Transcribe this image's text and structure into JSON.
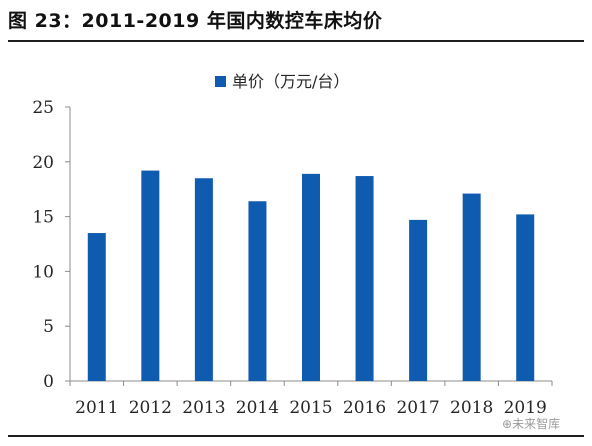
{
  "figure": {
    "title": "图 23：2011-2019 年国内数控车床均价"
  },
  "watermark": {
    "text": "未来智库"
  },
  "chart_data": {
    "type": "bar",
    "categories": [
      "2011",
      "2012",
      "2013",
      "2014",
      "2015",
      "2016",
      "2017",
      "2018",
      "2019"
    ],
    "series": [
      {
        "name": "单价（万元/台）",
        "values": [
          13.5,
          19.2,
          18.5,
          16.4,
          18.9,
          18.7,
          14.7,
          17.1,
          15.2
        ],
        "color": "#0f5bb0"
      }
    ],
    "title": "",
    "xlabel": "",
    "ylabel": "",
    "ylim": [
      0,
      25
    ],
    "yticks": [
      0,
      5,
      10,
      15,
      20,
      25
    ],
    "grid": false,
    "legend_position": "top-center"
  }
}
